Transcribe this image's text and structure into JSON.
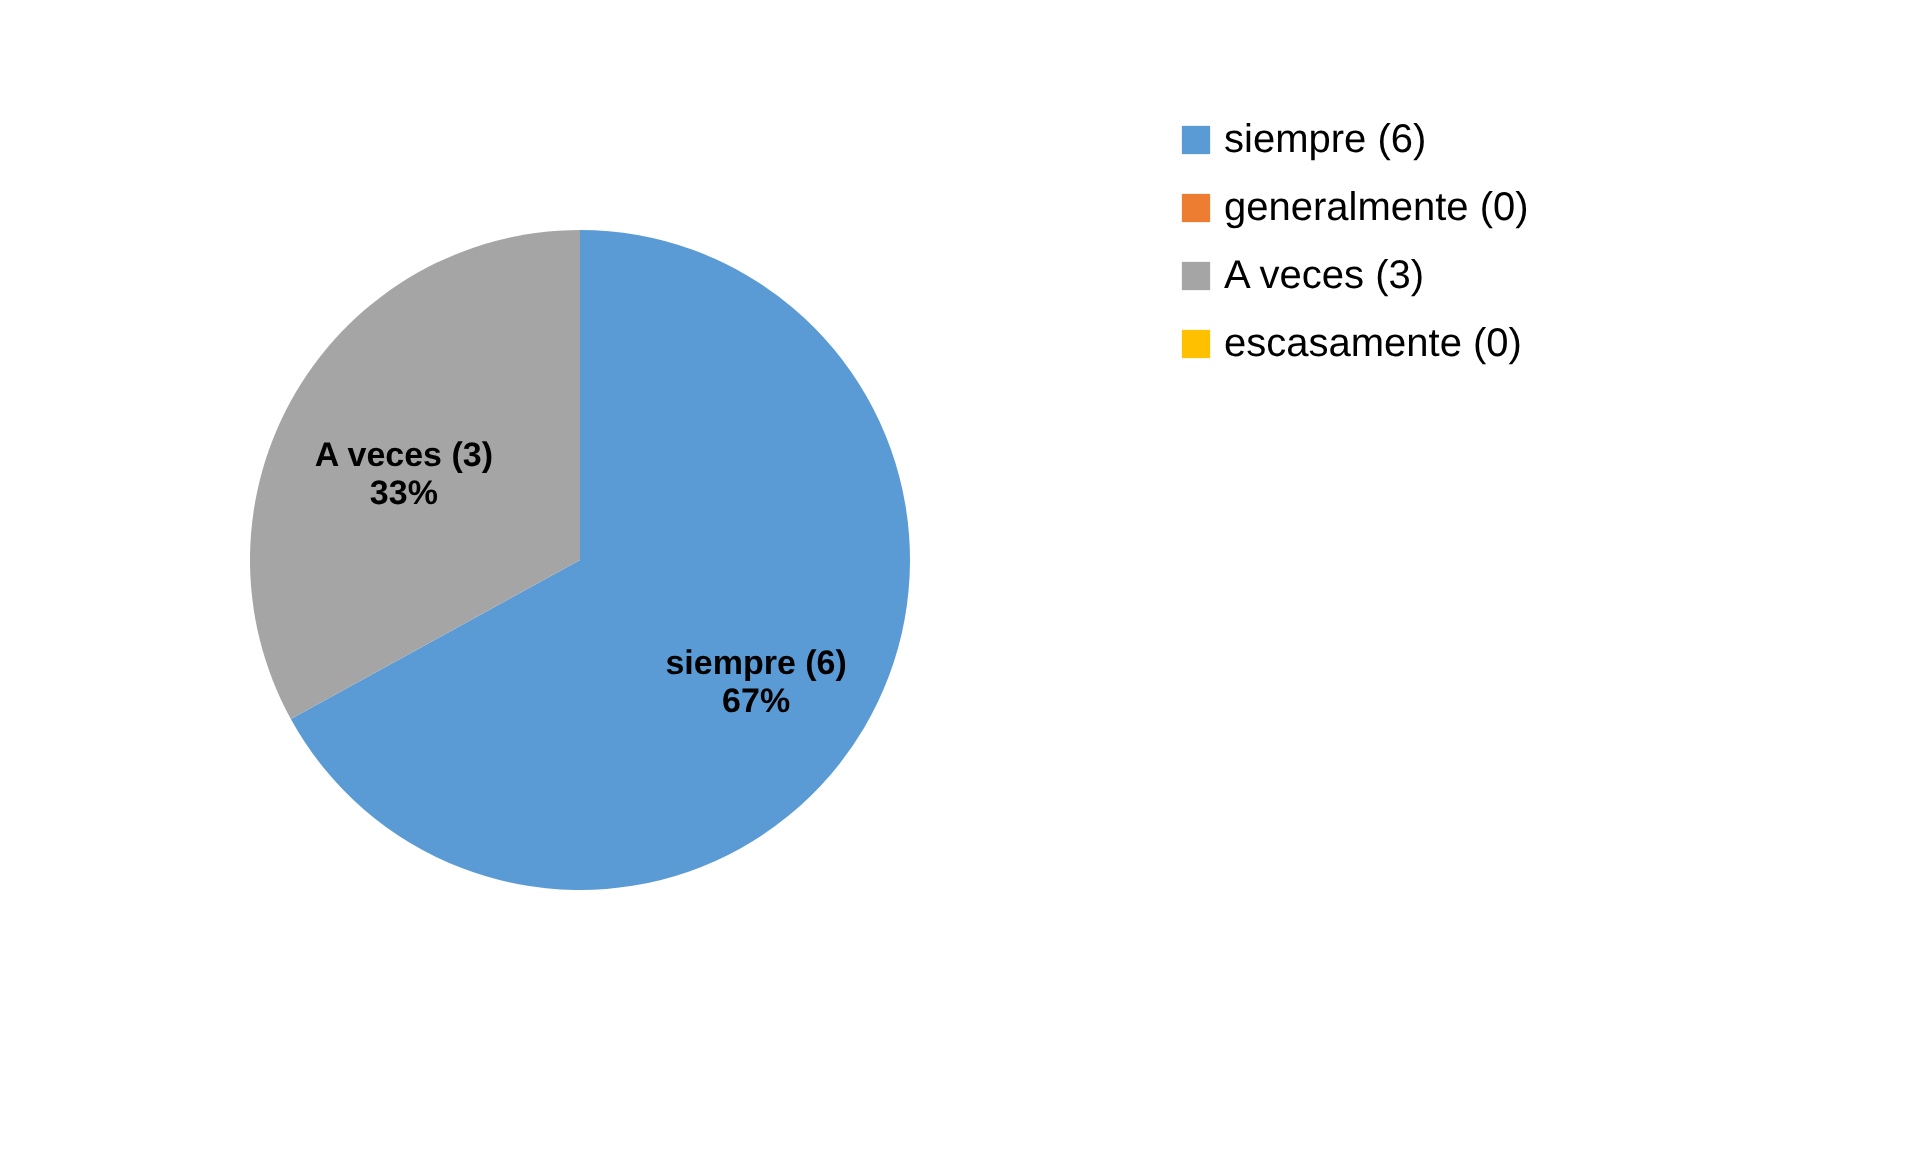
{
  "chart_data": {
    "type": "pie",
    "categories": [
      "siempre (6)",
      "generalmente (0)",
      "A veces (3)",
      "escasamente (0)"
    ],
    "values": [
      67,
      0,
      33,
      0
    ],
    "value_labels": [
      "67%",
      null,
      "33%",
      null
    ],
    "colors": [
      "#5b9bd5",
      "#ed7d31",
      "#a5a5a5",
      "#ffc000"
    ],
    "legend": "right"
  }
}
